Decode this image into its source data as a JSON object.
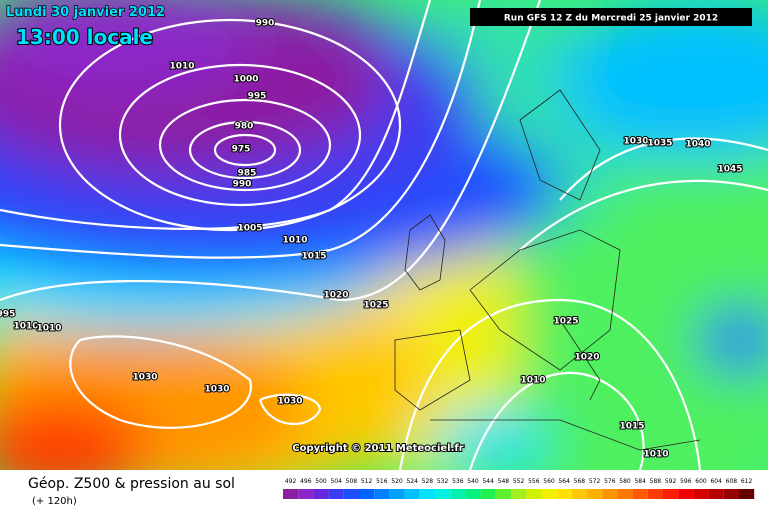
{
  "header": {
    "date": "Lundi 30 janvier 2012",
    "time": "13:00 locale",
    "run": "Run GFS 12 Z du Mercredi 25 janvier 2012"
  },
  "copyright": "Copyright © 2011 Meteociel.fr",
  "isobar_labels": [
    990,
    1010,
    1000,
    995,
    980,
    975,
    985,
    990,
    1005,
    1010,
    1015,
    1020,
    1025,
    1030,
    1030,
    1030,
    1030,
    1035,
    1040,
    1045,
    1025,
    1020,
    1010,
    1015,
    1010,
    995,
    1010,
    1010
  ],
  "footer": {
    "title": "Géop. Z500 & pression au sol",
    "lead": "(+ 120h)"
  },
  "legend": {
    "values": [
      492,
      496,
      500,
      504,
      508,
      512,
      516,
      520,
      524,
      528,
      532,
      536,
      540,
      544,
      548,
      552,
      556,
      560,
      564,
      568,
      572,
      576,
      580,
      584,
      588,
      592,
      596,
      600,
      604,
      608,
      612
    ],
    "colors": [
      "#8c1ea0",
      "#8c28c8",
      "#6428dc",
      "#3c3cf0",
      "#1e50ff",
      "#0064ff",
      "#0080ff",
      "#00a0ff",
      "#00c0ff",
      "#00e0ff",
      "#00f0e0",
      "#00f0b0",
      "#00f080",
      "#20f050",
      "#60f030",
      "#a0f020",
      "#d0f000",
      "#f0f000",
      "#ffe000",
      "#ffc800",
      "#ffb000",
      "#ff9600",
      "#ff7800",
      "#ff5a00",
      "#ff3c00",
      "#ff1e00",
      "#f00000",
      "#d20000",
      "#b40000",
      "#960000",
      "#640000"
    ]
  }
}
